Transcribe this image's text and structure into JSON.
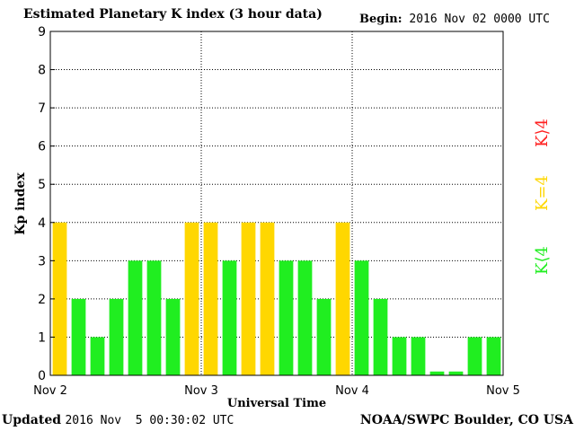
{
  "header": {
    "title": "Estimated Planetary K index (3 hour data)",
    "begin_label": "Begin:",
    "begin_value": "2016 Nov 02 0000 UTC"
  },
  "footer": {
    "updated_label": "Updated",
    "updated_value": "2016 Nov  5 00:30:02 UTC",
    "source": "NOAA/SWPC Boulder, CO USA"
  },
  "legend": [
    {
      "label": "K>4",
      "display": "K⟩4",
      "color": "#ff2020"
    },
    {
      "label": "K=4",
      "display": "K=4",
      "color": "#ffd700"
    },
    {
      "label": "K<4",
      "display": "K⟨4",
      "color": "#20ee20"
    }
  ],
  "colors": {
    "below4": "#20ee20",
    "equal4": "#ffd700",
    "above4": "#ff2020"
  },
  "chart_data": {
    "type": "bar",
    "title": "Estimated Planetary K index (3 hour data)",
    "xlabel": "Universal Time",
    "ylabel": "Kp index",
    "ylim": [
      0,
      9
    ],
    "yticks": [
      "0",
      "1",
      "2",
      "3",
      "4",
      "5",
      "6",
      "7",
      "8",
      "9"
    ],
    "xticks": [
      "Nov 2",
      "Nov 3",
      "Nov 4",
      "Nov 5"
    ],
    "grid": true,
    "values": [
      4,
      2,
      1,
      2,
      3,
      3,
      2,
      4,
      4,
      3,
      4,
      4,
      3,
      3,
      2,
      4,
      3,
      2,
      1,
      1,
      0.1,
      0.1,
      1,
      1
    ]
  }
}
